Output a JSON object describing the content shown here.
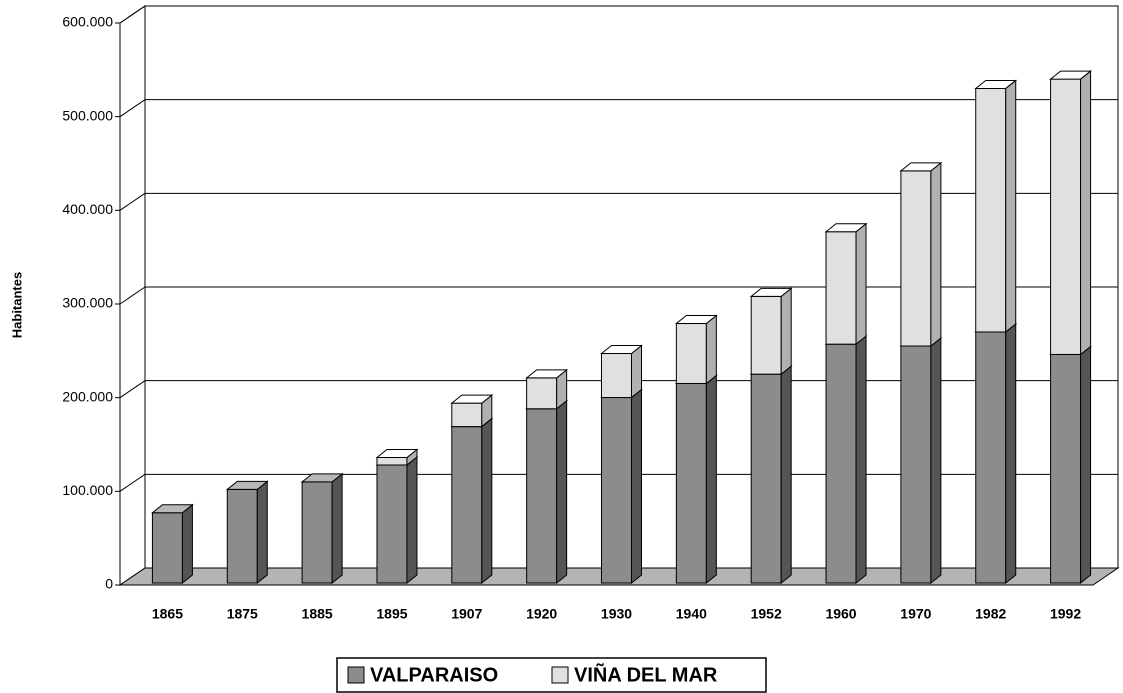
{
  "chart_data": {
    "type": "bar3d_stacked",
    "y_label": "Habitantes",
    "categories": [
      "1865",
      "1875",
      "1885",
      "1895",
      "1907",
      "1920",
      "1930",
      "1940",
      "1952",
      "1960",
      "1970",
      "1982",
      "1992"
    ],
    "series": [
      {
        "name": "VALPARAISO",
        "color": "#8c8c8c",
        "values": [
          75000,
          100000,
          108000,
          126000,
          167000,
          186000,
          198000,
          213000,
          223000,
          255000,
          253000,
          268000,
          244000
        ]
      },
      {
        "name": "VIÑA DEL MAR",
        "color": "#e0e0e0",
        "values": [
          0,
          0,
          0,
          8000,
          25000,
          33000,
          47000,
          64000,
          83000,
          120000,
          187000,
          260000,
          294000
        ]
      }
    ],
    "ylim": [
      0,
      600000
    ],
    "yticks": [
      0,
      {
        "value": 100000,
        "label": "100.000"
      },
      {
        "value": 200000,
        "label": "200.000"
      },
      {
        "value": 300000,
        "label": "300.000"
      },
      {
        "value": 400000,
        "label": "400.000"
      },
      {
        "value": 500000,
        "label": "500.000"
      },
      {
        "value": 600000,
        "label": "600.000"
      }
    ],
    "grid": true
  }
}
